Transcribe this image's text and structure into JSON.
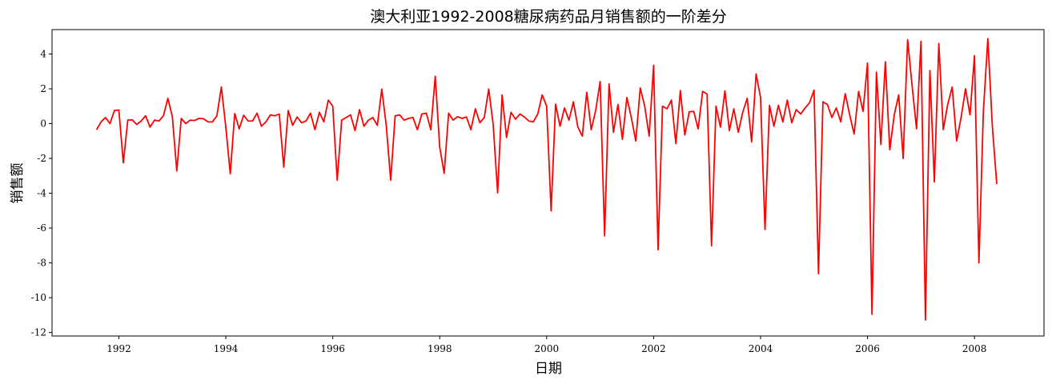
{
  "chart_data": {
    "type": "line",
    "title": "澳大利亚1992-2008糖尿病药品月销售额的一阶差分",
    "xlabel": "日期",
    "ylabel": "销售额",
    "xlim": [
      1990.75,
      2009.3
    ],
    "ylim": [
      -12.2,
      5.4
    ],
    "x_ticks": [
      1992,
      1994,
      1996,
      1998,
      2000,
      2002,
      2004,
      2006,
      2008
    ],
    "x_tick_labels": [
      "1992",
      "1994",
      "1996",
      "1998",
      "2000",
      "2002",
      "2004",
      "2006",
      "2008"
    ],
    "y_ticks": [
      4,
      2,
      0,
      -2,
      -4,
      -6,
      -8,
      -10,
      -12
    ],
    "y_tick_labels": [
      "4",
      "2",
      "0",
      "-2",
      "-4",
      "-6",
      "-8",
      "-10",
      "-12"
    ],
    "grid": false,
    "start": 1991.583,
    "step_months": 1,
    "series": [
      {
        "name": "一阶差分",
        "color": "#ff0000",
        "values": [
          -0.35,
          0.1,
          0.35,
          0.0,
          0.75,
          0.78,
          -2.25,
          0.2,
          0.22,
          -0.05,
          0.15,
          0.45,
          -0.2,
          0.2,
          0.15,
          0.45,
          1.45,
          0.4,
          -2.72,
          0.3,
          0.0,
          0.2,
          0.18,
          0.3,
          0.28,
          0.1,
          0.1,
          0.45,
          2.1,
          -0.2,
          -2.88,
          0.58,
          -0.3,
          0.48,
          0.15,
          0.15,
          0.6,
          -0.15,
          0.1,
          0.5,
          0.45,
          0.55,
          -2.5,
          0.75,
          -0.1,
          0.38,
          0.05,
          0.15,
          0.6,
          -0.35,
          0.65,
          0.1,
          1.35,
          1.0,
          -3.25,
          0.2,
          0.35,
          0.5,
          -0.4,
          0.8,
          -0.15,
          0.2,
          0.35,
          -0.1,
          1.98,
          -0.1,
          -3.25,
          0.45,
          0.5,
          0.2,
          0.3,
          0.35,
          -0.35,
          0.55,
          0.6,
          -0.35,
          2.72,
          -1.35,
          -2.85,
          0.6,
          0.2,
          0.4,
          0.3,
          0.38,
          -0.35,
          0.85,
          0.05,
          0.35,
          1.98,
          -0.05,
          -3.98,
          1.65,
          -0.8,
          0.65,
          0.25,
          0.55,
          0.38,
          0.15,
          0.1,
          0.55,
          1.65,
          1.0,
          -5.02,
          1.12,
          -0.15,
          0.9,
          0.2,
          1.25,
          -0.2,
          -0.72,
          1.8,
          -0.35,
          0.75,
          2.42,
          -6.45,
          2.28,
          -0.5,
          1.1,
          -0.9,
          1.5,
          0.35,
          -1.0,
          2.05,
          1.0,
          -0.72,
          3.35,
          -7.25,
          1.0,
          0.85,
          1.35,
          -1.15,
          1.9,
          -0.65,
          0.68,
          0.7,
          -0.3,
          1.85,
          1.7,
          -7.02,
          1.0,
          -0.2,
          1.88,
          -0.4,
          0.85,
          -0.5,
          0.65,
          1.45,
          -1.05,
          2.85,
          1.5,
          -6.08,
          1.05,
          -0.15,
          1.05,
          0.1,
          1.35,
          0.05,
          0.8,
          0.55,
          0.9,
          1.2,
          1.92,
          -8.62,
          1.25,
          1.1,
          0.35,
          0.9,
          0.1,
          1.72,
          0.5,
          -0.6,
          1.85,
          0.7,
          3.48,
          -10.95,
          2.95,
          -1.2,
          3.55,
          -1.5,
          0.5,
          1.65,
          -2.0,
          4.82,
          2.2,
          -0.3,
          4.72,
          -11.28,
          3.05,
          -3.35,
          4.6,
          -0.35,
          1.1,
          2.1,
          -1.0,
          0.35,
          2.0,
          0.5,
          3.9,
          -8.0,
          0.7,
          4.88,
          -0.1,
          -3.48
        ]
      }
    ]
  }
}
